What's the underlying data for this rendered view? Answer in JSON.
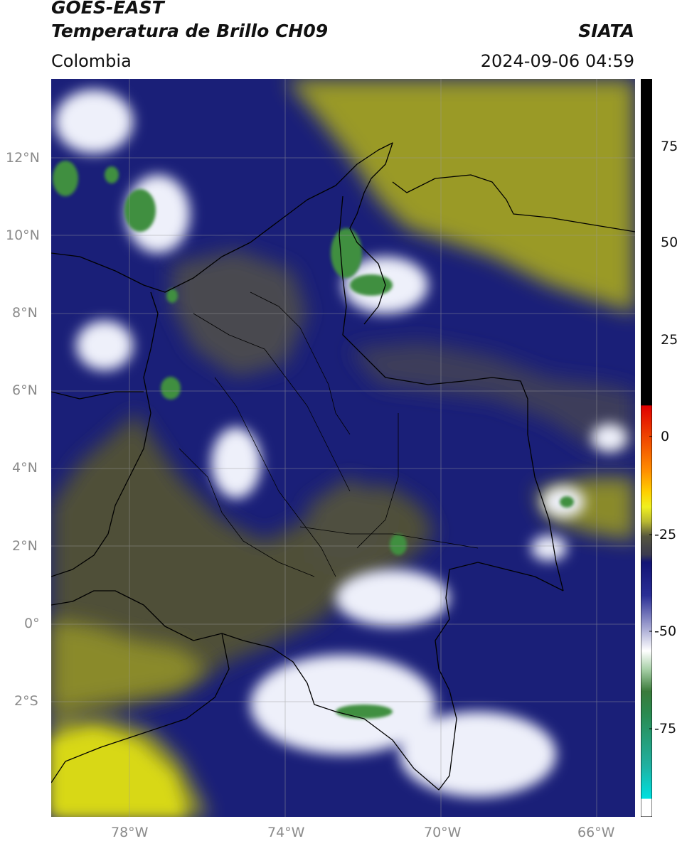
{
  "header": {
    "title_line1": "GOES-EAST",
    "title_line2": "Temperatura de Brillo CH09",
    "brand": "SIATA",
    "region": "Colombia",
    "timestamp": "2024-09-06 04:59"
  },
  "map": {
    "lat_labels": [
      "12°N",
      "10°N",
      "8°N",
      "6°N",
      "4°N",
      "2°N",
      "0°",
      "2°S"
    ],
    "lon_labels": [
      "78°W",
      "74°W",
      "70°W",
      "66°W"
    ],
    "gridlines": true,
    "colors": {
      "warm_land": "#505038",
      "dry_air_olive": "#9a9a28",
      "very_dry_yellow": "#d8d812",
      "navy": "#121475",
      "cloud_white": "#f2f2fa",
      "cold_green": "#3f8f3f",
      "border": "#000000"
    }
  },
  "colorbar": {
    "labels": [
      "75",
      "50",
      "25",
      "0",
      "-25",
      "-50",
      "-75"
    ],
    "values": [
      75,
      50,
      25,
      0,
      -25,
      -50,
      -75
    ],
    "vmin": -95,
    "vmax": 90
  }
}
